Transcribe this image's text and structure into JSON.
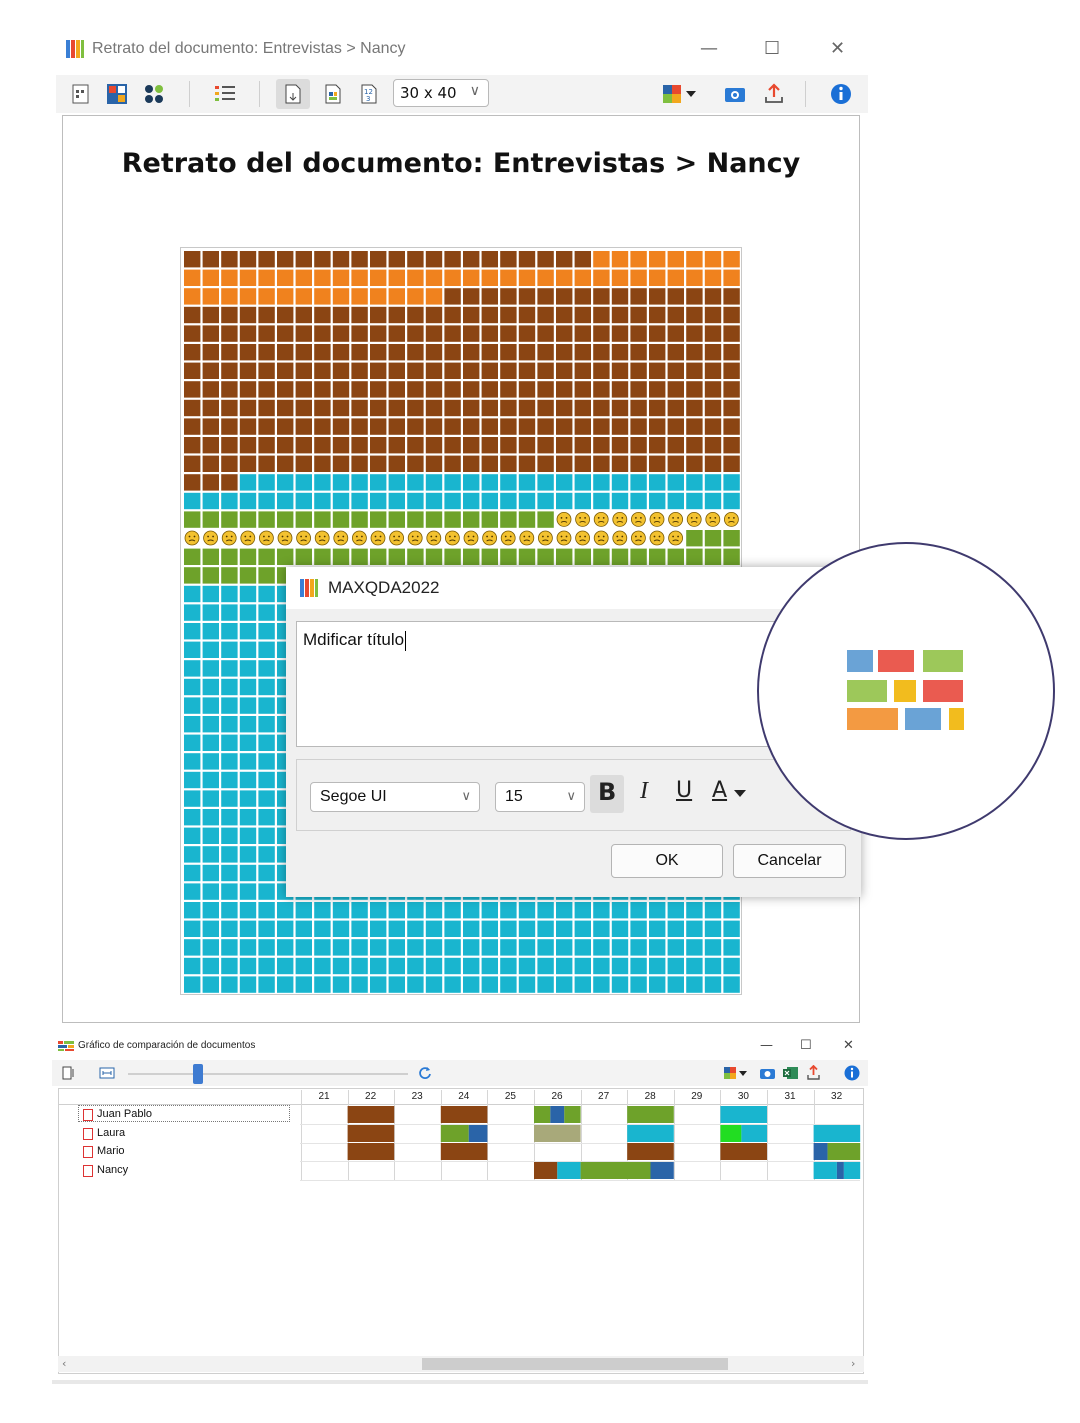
{
  "window": {
    "title": "Retrato del documento: Entrevistas > Nancy",
    "controls": {
      "minimize": "—",
      "maximize": "☐",
      "close": "✕"
    }
  },
  "toolbar": {
    "grid_size": "30 x 40",
    "icons": [
      "document-portrait-icon",
      "blocks-icon",
      "circles-icon",
      "list-icon",
      "doc-icon-1",
      "doc-icon-2",
      "doc-icon-3",
      "color-palette-icon",
      "camera-icon",
      "export-icon",
      "info-icon"
    ]
  },
  "portrait": {
    "title": "Retrato del documento: Entrevistas > Nancy",
    "grid": {
      "cols": 30,
      "rows": 40
    },
    "colors": {
      "brown": "#8b4513",
      "orange": "#f0821e",
      "cyan": "#19b5cf",
      "green": "#6ea22a",
      "red": "#e23b26",
      "emoji": "#f3c230"
    }
  },
  "dialog": {
    "title": "MAXQDA2022",
    "text": "Mdificar título",
    "font": "Segoe UI",
    "size": "15",
    "bold": "B",
    "italic": "I",
    "underline": "U",
    "font_color": "A",
    "ok": "OK",
    "cancel": "Cancelar"
  },
  "zoom": {
    "colors": [
      "#6aa3d6",
      "#ea5b50",
      "#9dc85a",
      "#9dc85a",
      "#f2bc1e",
      "#ea5b50",
      "#f39a42",
      "#6aa3d6",
      "#f2bc1e"
    ]
  },
  "comparison": {
    "title": "Gráfico de comparación de documentos",
    "controls": {
      "minimize": "—",
      "maximize": "☐",
      "close": "✕"
    },
    "columns": [
      "21",
      "22",
      "23",
      "24",
      "25",
      "26",
      "27",
      "28",
      "29",
      "30",
      "31",
      "32"
    ],
    "documents": [
      "Juan Pablo",
      "Laura",
      "Mario",
      "Nancy"
    ],
    "colors": {
      "brown": "#8b4513",
      "green": "#6ea22a",
      "blue": "#2a64a8",
      "cyan": "#19b5cf",
      "khaki": "#a8a97a",
      "lime": "#22dd22"
    }
  }
}
